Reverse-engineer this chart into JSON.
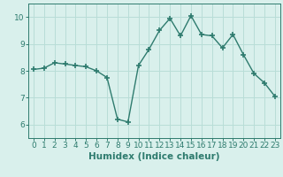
{
  "x": [
    0,
    1,
    2,
    3,
    4,
    5,
    6,
    7,
    8,
    9,
    10,
    11,
    12,
    13,
    14,
    15,
    16,
    17,
    18,
    19,
    20,
    21,
    22,
    23
  ],
  "y": [
    8.05,
    8.1,
    8.3,
    8.25,
    8.2,
    8.15,
    8.0,
    7.75,
    6.2,
    6.1,
    8.2,
    8.8,
    9.5,
    9.95,
    9.3,
    10.05,
    9.35,
    9.3,
    8.85,
    9.35,
    8.6,
    7.9,
    7.55,
    7.05
  ],
  "line_color": "#2e7b6e",
  "marker": "+",
  "marker_size": 5,
  "marker_lw": 1.2,
  "bg_color": "#d9f0ec",
  "grid_color": "#b8ddd7",
  "xlabel": "Humidex (Indice chaleur)",
  "ylim": [
    5.5,
    10.5
  ],
  "xlim": [
    -0.5,
    23.5
  ],
  "yticks": [
    6,
    7,
    8,
    9,
    10
  ],
  "xticks": [
    0,
    1,
    2,
    3,
    4,
    5,
    6,
    7,
    8,
    9,
    10,
    11,
    12,
    13,
    14,
    15,
    16,
    17,
    18,
    19,
    20,
    21,
    22,
    23
  ],
  "tick_fontsize": 6.5,
  "label_fontsize": 7.5,
  "spine_color": "#2e7b6e",
  "line_width": 1.0
}
